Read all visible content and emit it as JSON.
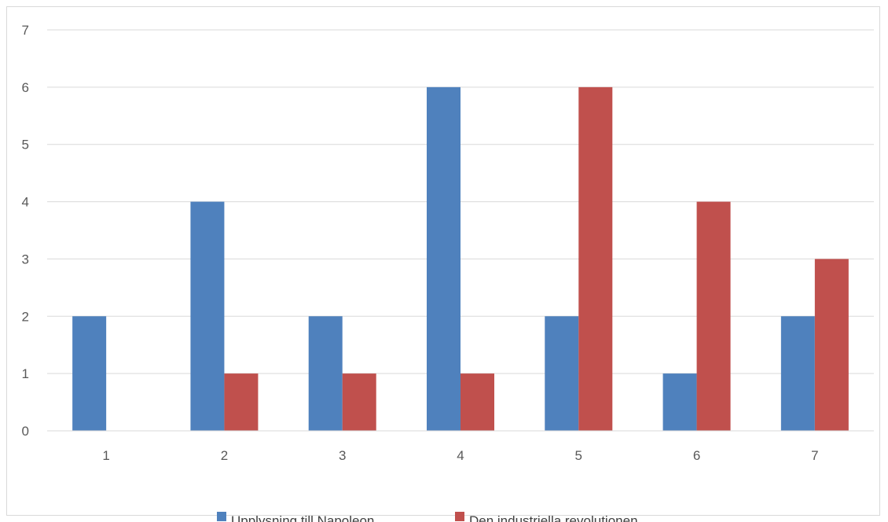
{
  "chart_data": {
    "type": "bar",
    "categories": [
      "1",
      "2",
      "3",
      "4",
      "5",
      "6",
      "7"
    ],
    "series": [
      {
        "name": "Upplysning till Napoleon",
        "values": [
          2,
          4,
          2,
          6,
          2,
          1,
          2
        ],
        "color": "#4f81bd"
      },
      {
        "name": "Den industriella revolutionen",
        "values": [
          0,
          1,
          1,
          1,
          6,
          4,
          3
        ],
        "color": "#c0504d"
      }
    ],
    "yticks": [
      "0",
      "1",
      "2",
      "3",
      "4",
      "5",
      "6",
      "7"
    ],
    "ylim": [
      0,
      7
    ],
    "grid": true,
    "legend_position": "bottom"
  }
}
